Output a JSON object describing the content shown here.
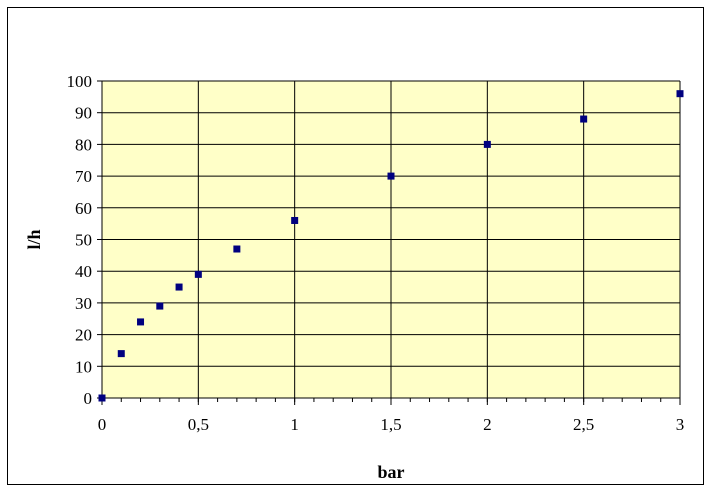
{
  "chart_data": {
    "type": "scatter",
    "title": "",
    "xlabel": "bar",
    "ylabel": "l/h",
    "xlim": [
      0,
      3
    ],
    "ylim": [
      0,
      100
    ],
    "x_ticks": [
      0,
      0.5,
      1,
      1.5,
      2,
      2.5,
      3
    ],
    "x_tick_labels": [
      "0",
      "0,5",
      "1",
      "1,5",
      "2",
      "2,5",
      "3"
    ],
    "y_ticks": [
      0,
      10,
      20,
      30,
      40,
      50,
      60,
      70,
      80,
      90,
      100
    ],
    "y_tick_labels": [
      "0",
      "10",
      "20",
      "30",
      "40",
      "50",
      "60",
      "70",
      "80",
      "90",
      "100"
    ],
    "x_minor_step": 0.1,
    "grid": true,
    "legend": "none",
    "series": [
      {
        "points": [
          {
            "x": 0,
            "y": 0
          },
          {
            "x": 0.1,
            "y": 14
          },
          {
            "x": 0.2,
            "y": 24
          },
          {
            "x": 0.3,
            "y": 29
          },
          {
            "x": 0.4,
            "y": 35
          },
          {
            "x": 0.5,
            "y": 39
          },
          {
            "x": 0.7,
            "y": 47
          },
          {
            "x": 1,
            "y": 56
          },
          {
            "x": 1.5,
            "y": 70
          },
          {
            "x": 2,
            "y": 80
          },
          {
            "x": 2.5,
            "y": 88
          },
          {
            "x": 3,
            "y": 96
          }
        ]
      }
    ],
    "colors": {
      "plot_background": "#ffffc8",
      "marker": "#00007f",
      "grid": "#000000",
      "axis": "#000000"
    }
  }
}
